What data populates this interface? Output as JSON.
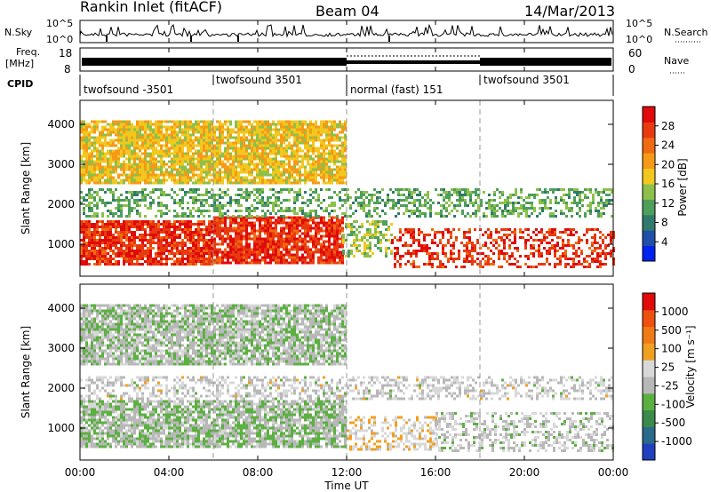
{
  "header": {
    "station": "Rankin Inlet (fitACF)",
    "beam": "Beam 04",
    "date": "14/Mar/2013"
  },
  "summary": {
    "nsky_label": "N.Sky",
    "nsky_ticks": [
      "10^5",
      "10^0"
    ],
    "nsearch_label": "N.Search",
    "freq_label": "Freq.",
    "freq_unit": "[MHz]",
    "freq_ticks": [
      "18",
      "8"
    ],
    "nave_label": "Nave",
    "nave_ticks": [
      "60",
      "0"
    ],
    "cpid_label": "CPID",
    "cpid_segments": [
      {
        "label": "twofsound -3501",
        "start": 0,
        "end": 6
      },
      {
        "label": "twofsound 3501",
        "start": 6,
        "end": 12
      },
      {
        "label": "normal (fast) 151",
        "start": 12,
        "end": 18
      },
      {
        "label": "twofsound 3501",
        "start": 18,
        "end": 24
      }
    ]
  },
  "panels": {
    "ylabel": "Slant Range [km]",
    "yticks": [
      "1000",
      "2000",
      "3000",
      "4000"
    ],
    "xlabel": "Time UT",
    "xticks": [
      "00:00",
      "04:00",
      "08:00",
      "12:00",
      "16:00",
      "20:00",
      "00:00"
    ],
    "power_label": "Power [dB]",
    "power_ticks": [
      "28",
      "24",
      "20",
      "16",
      "12",
      "8",
      "4"
    ],
    "velocity_label": "Velocity [m s⁻¹]",
    "velocity_ticks": [
      "1000",
      "500",
      "100",
      "25",
      "-25",
      "-100",
      "-500",
      "-1000"
    ]
  },
  "colors": {
    "power_scale": [
      "#0022ee",
      "#1f4fa8",
      "#2f7a6a",
      "#4e9e5c",
      "#8cc04a",
      "#f2c81e",
      "#f59a18",
      "#f06a12",
      "#e83a10",
      "#e00a0a"
    ],
    "velocity_scale": [
      "#2040c0",
      "#2a6a8a",
      "#3a8a4a",
      "#5cb042",
      "#b8b8b8",
      "#d8d8d8",
      "#f0a020",
      "#f07a16",
      "#ee5010",
      "#e00a0a"
    ]
  },
  "chart_data": [
    {
      "type": "heatmap",
      "title": "Power",
      "x_axis": "Time UT (hours)",
      "xlim": [
        0,
        24
      ],
      "ylim": [
        200,
        4600
      ],
      "colorbar": {
        "label": "Power [dB]",
        "range": [
          0,
          32
        ]
      },
      "bands": [
        {
          "t0": 0,
          "t1": 6,
          "r0": 500,
          "r1": 1600,
          "value": 28
        },
        {
          "t0": 6,
          "t1": 11.8,
          "r0": 500,
          "r1": 1700,
          "value": 28
        },
        {
          "t0": 11.8,
          "t1": 14,
          "r0": 700,
          "r1": 1600,
          "value": 14
        },
        {
          "t0": 14,
          "t1": 24,
          "r0": 450,
          "r1": 1400,
          "value": 28
        },
        {
          "t0": 0,
          "t1": 24,
          "r0": 1700,
          "r1": 2400,
          "value": 12
        },
        {
          "t0": 0,
          "t1": 12,
          "r0": 2500,
          "r1": 4100,
          "value": 18
        }
      ]
    },
    {
      "type": "heatmap",
      "title": "Velocity",
      "x_axis": "Time UT (hours)",
      "xlim": [
        0,
        24
      ],
      "ylim": [
        200,
        4600
      ],
      "colorbar": {
        "label": "Velocity [m s⁻¹]",
        "range": [
          -1000,
          1000
        ]
      },
      "bands": [
        {
          "t0": 0,
          "t1": 12,
          "r0": 500,
          "r1": 1700,
          "value": -150
        },
        {
          "t0": 12,
          "t1": 16,
          "r0": 450,
          "r1": 1300,
          "value": 150
        },
        {
          "t0": 16,
          "t1": 24,
          "r0": 450,
          "r1": 1400,
          "value": -50
        },
        {
          "t0": 0,
          "t1": 24,
          "r0": 1700,
          "r1": 2300,
          "value": 0
        },
        {
          "t0": 0,
          "t1": 12,
          "r0": 2600,
          "r1": 4100,
          "value": -120
        }
      ]
    }
  ]
}
